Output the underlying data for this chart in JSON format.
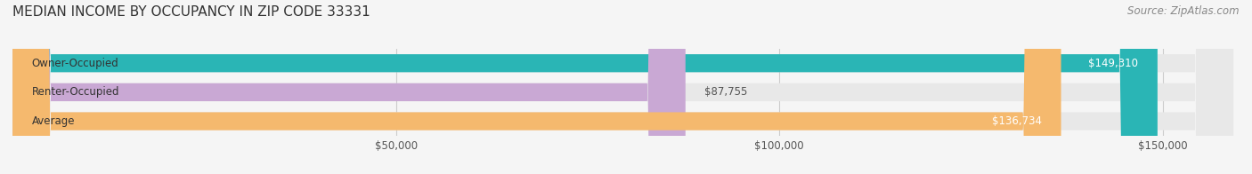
{
  "title": "MEDIAN INCOME BY OCCUPANCY IN ZIP CODE 33331",
  "source": "Source: ZipAtlas.com",
  "categories": [
    "Owner-Occupied",
    "Renter-Occupied",
    "Average"
  ],
  "values": [
    149310,
    87755,
    136734
  ],
  "bar_colors": [
    "#2ab5b5",
    "#c9a8d4",
    "#f5b96e"
  ],
  "label_colors": [
    "#ffffff",
    "#555555",
    "#ffffff"
  ],
  "value_labels": [
    "$149,310",
    "$87,755",
    "$136,734"
  ],
  "xlim": [
    0,
    160000
  ],
  "xticks": [
    50000,
    100000,
    150000
  ],
  "xtick_labels": [
    "$50,000",
    "$100,000",
    "$150,000"
  ],
  "title_fontsize": 11,
  "source_fontsize": 8.5,
  "tick_fontsize": 8.5,
  "bar_label_fontsize": 8.5,
  "value_label_fontsize": 8.5,
  "background_color": "#f5f5f5",
  "bar_bg_color": "#e8e8e8",
  "title_color": "#333333",
  "source_color": "#888888"
}
